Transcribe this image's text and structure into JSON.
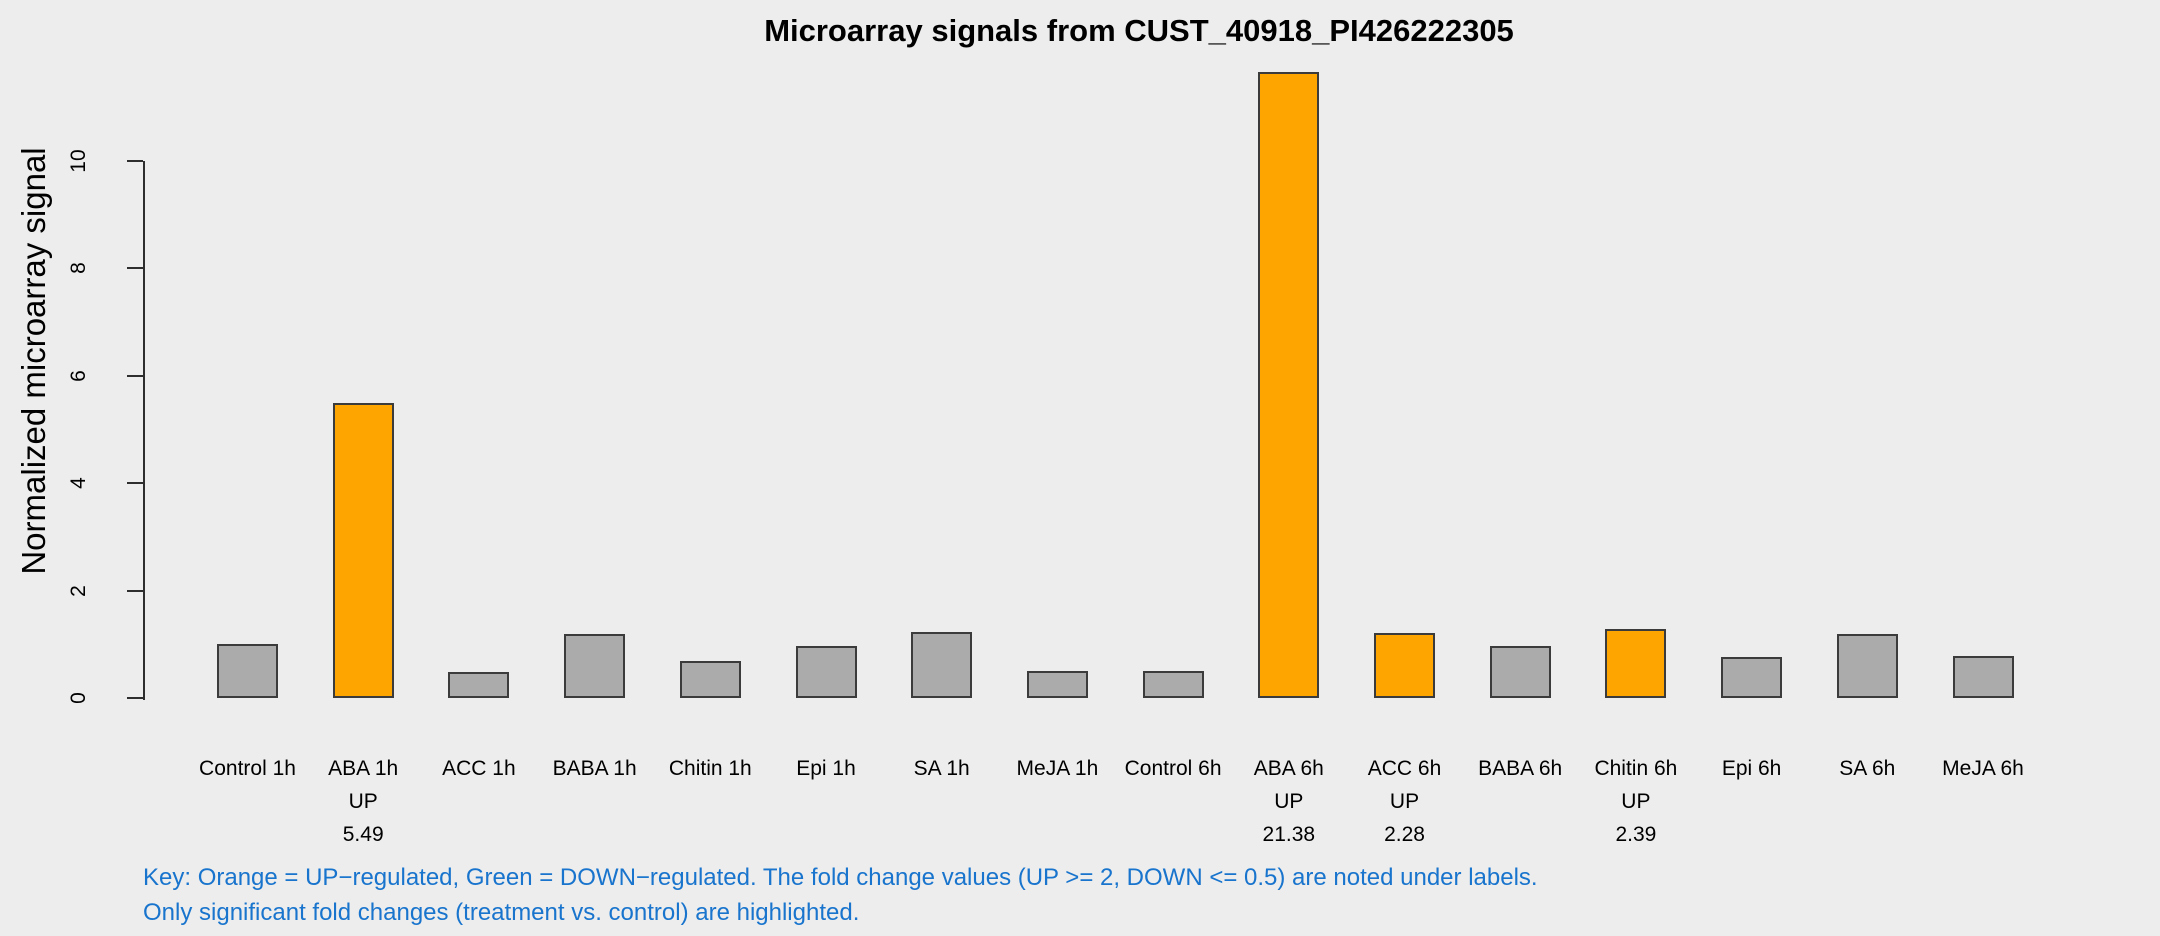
{
  "chart": {
    "title": "Microarray signals from CUST_40918_PI426222305",
    "ylabel": "Normalized microarray signal"
  },
  "key": {
    "line1": "Key: Orange = UP−regulated, Green = DOWN−regulated. The fold change values (UP >= 2, DOWN <= 0.5) are noted under labels.",
    "line2": "Only significant fold changes (treatment vs. control) are highlighted."
  },
  "colors": {
    "background": "#EDEDED",
    "bar_up": "#FFA500",
    "bar_neutral": "#ABABAB",
    "bar_border": "#3b3b3b",
    "axis": "#2e2e2e",
    "key_text": "#1874CD",
    "label_text": "#000000"
  },
  "chart_data": {
    "type": "bar",
    "title": "Microarray signals from CUST_40918_PI426222305",
    "xlabel": "",
    "ylabel": "Normalized microarray signal",
    "ylim": [
      0,
      11.7
    ],
    "yticks": [
      0,
      2,
      4,
      6,
      8,
      10
    ],
    "grid": false,
    "legend_position": "none",
    "categories": [
      "Control 1h",
      "ABA 1h",
      "ACC 1h",
      "BABA 1h",
      "Chitin 1h",
      "Epi 1h",
      "SA 1h",
      "MeJA 1h",
      "Control 6h",
      "ABA 6h",
      "ACC 6h",
      "BABA 6h",
      "Chitin 6h",
      "Epi 6h",
      "SA 6h",
      "MeJA 6h"
    ],
    "values": [
      1.0,
      5.49,
      0.49,
      1.2,
      0.68,
      0.96,
      1.22,
      0.51,
      0.51,
      11.65,
      1.21,
      0.96,
      1.28,
      0.77,
      1.2,
      0.79
    ],
    "regulation": [
      null,
      "UP",
      null,
      null,
      null,
      null,
      null,
      null,
      null,
      "UP",
      "UP",
      null,
      "UP",
      null,
      null,
      null
    ],
    "fold_change": [
      null,
      "5.49",
      null,
      null,
      null,
      null,
      null,
      null,
      null,
      "21.38",
      "2.28",
      null,
      "2.39",
      null,
      null,
      null
    ],
    "highlight_color_meaning": "Orange = UP-regulated, Green = DOWN-regulated"
  }
}
